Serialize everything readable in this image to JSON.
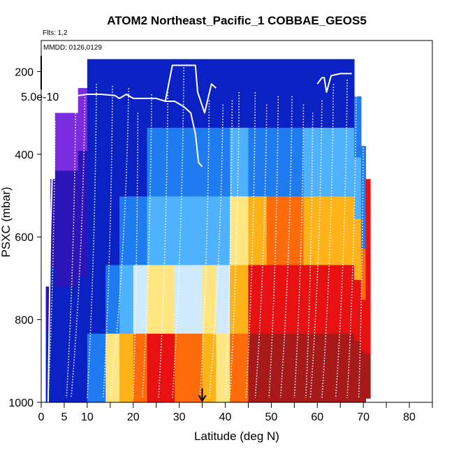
{
  "chart_data": {
    "type": "heatmap",
    "title": "ATOM2 Northeast_Pacific_1 COBBAE_GEOS5",
    "flights_label": "Flts: 1,2",
    "dates_label": "MMDD: 0126,0129",
    "colorbar_label": "5.0e-10",
    "xlabel": "Latitude (deg N)",
    "ylabel": "PSXC (mbar)",
    "xlim": [
      0,
      85
    ],
    "ylim": [
      1000,
      125
    ],
    "y_reversed": true,
    "x_ticks": [
      0,
      5,
      10,
      20,
      30,
      40,
      50,
      60,
      70,
      80
    ],
    "x_minor_ticks": [
      15,
      25,
      35,
      45,
      55,
      65,
      75,
      85
    ],
    "y_ticks": [
      200,
      400,
      600,
      800,
      1000
    ],
    "marker_latitude": 35,
    "color_levels": [
      "#7b2be0",
      "#2c14b8",
      "#0a22c4",
      "#1f7cf0",
      "#4fb2ff",
      "#cfeaff",
      "#ffe680",
      "#ffb319",
      "#ff6a0a",
      "#e81010",
      "#a81a1a"
    ],
    "columns": [
      {
        "lat_from": 1.0,
        "lat_to": 2.0,
        "p_top": 720,
        "p_bottom": 1000,
        "levels": [
          1,
          1,
          2,
          2,
          2
        ]
      },
      {
        "lat_from": 2.0,
        "lat_to": 3.0,
        "p_top": 460,
        "p_bottom": 1000,
        "levels": [
          1,
          1,
          2,
          2,
          2
        ]
      },
      {
        "lat_from": 3.0,
        "lat_to": 8.0,
        "p_top": 300,
        "p_bottom": 1000,
        "levels": [
          0,
          1,
          1,
          2,
          2
        ]
      },
      {
        "lat_from": 8.0,
        "lat_to": 10.0,
        "p_top": 240,
        "p_bottom": 1000,
        "levels": [
          0,
          1,
          1,
          2,
          2
        ]
      },
      {
        "lat_from": 10.0,
        "lat_to": 14.0,
        "p_top": 170,
        "p_bottom": 1000,
        "levels": [
          2,
          2,
          2,
          2,
          3
        ]
      },
      {
        "lat_from": 14.0,
        "lat_to": 17.0,
        "p_top": 170,
        "p_bottom": 1000,
        "levels": [
          2,
          2,
          2,
          3,
          6
        ]
      },
      {
        "lat_from": 17.0,
        "lat_to": 20.0,
        "p_top": 170,
        "p_bottom": 1000,
        "levels": [
          2,
          2,
          3,
          4,
          7
        ]
      },
      {
        "lat_from": 20.0,
        "lat_to": 23.0,
        "p_top": 170,
        "p_bottom": 1000,
        "levels": [
          2,
          2,
          3,
          5,
          8
        ]
      },
      {
        "lat_from": 23.0,
        "lat_to": 26.0,
        "p_top": 170,
        "p_bottom": 1000,
        "levels": [
          2,
          3,
          4,
          6,
          9
        ]
      },
      {
        "lat_from": 26.0,
        "lat_to": 29.0,
        "p_top": 170,
        "p_bottom": 1000,
        "levels": [
          2,
          3,
          4,
          6,
          9
        ]
      },
      {
        "lat_from": 29.0,
        "lat_to": 32.0,
        "p_top": 170,
        "p_bottom": 1000,
        "levels": [
          2,
          3,
          4,
          5,
          8
        ]
      },
      {
        "lat_from": 32.0,
        "lat_to": 35.0,
        "p_top": 170,
        "p_bottom": 1000,
        "levels": [
          2,
          3,
          4,
          5,
          8
        ]
      },
      {
        "lat_from": 35.0,
        "lat_to": 38.0,
        "p_top": 170,
        "p_bottom": 1000,
        "levels": [
          2,
          3,
          4,
          6,
          7
        ]
      },
      {
        "lat_from": 38.0,
        "lat_to": 41.0,
        "p_top": 170,
        "p_bottom": 1000,
        "levels": [
          2,
          3,
          4,
          5,
          6
        ]
      },
      {
        "lat_from": 41.0,
        "lat_to": 45.0,
        "p_top": 170,
        "p_bottom": 1000,
        "levels": [
          2,
          4,
          6,
          7,
          8
        ]
      },
      {
        "lat_from": 45.0,
        "lat_to": 49.0,
        "p_top": 170,
        "p_bottom": 1000,
        "levels": [
          2,
          3,
          7,
          9,
          10
        ]
      },
      {
        "lat_from": 49.0,
        "lat_to": 53.0,
        "p_top": 170,
        "p_bottom": 1000,
        "levels": [
          2,
          3,
          8,
          9,
          10
        ]
      },
      {
        "lat_from": 53.0,
        "lat_to": 57.0,
        "p_top": 170,
        "p_bottom": 1000,
        "levels": [
          2,
          3,
          8,
          9,
          10
        ]
      },
      {
        "lat_from": 57.0,
        "lat_to": 61.0,
        "p_top": 170,
        "p_bottom": 1000,
        "levels": [
          2,
          4,
          7,
          9,
          10
        ]
      },
      {
        "lat_from": 61.0,
        "lat_to": 65.0,
        "p_top": 170,
        "p_bottom": 1000,
        "levels": [
          2,
          4,
          7,
          9,
          10
        ]
      },
      {
        "lat_from": 65.0,
        "lat_to": 68.0,
        "p_top": 170,
        "p_bottom": 1000,
        "levels": [
          2,
          4,
          7,
          9,
          10
        ]
      },
      {
        "lat_from": 68.0,
        "lat_to": 69.5,
        "p_top": 260,
        "p_bottom": 1000,
        "levels": [
          3,
          4,
          7,
          9,
          10
        ]
      },
      {
        "lat_from": 69.5,
        "lat_to": 70.5,
        "p_top": 380,
        "p_bottom": 1000,
        "levels": [
          3,
          3,
          8,
          9,
          10
        ]
      },
      {
        "lat_from": 70.5,
        "lat_to": 71.5,
        "p_top": 460,
        "p_bottom": 990,
        "levels": [
          9,
          9,
          9,
          9,
          10
        ]
      }
    ],
    "flight_track": [
      {
        "lat": 1.5,
        "psxc": 1000
      },
      {
        "lat": 2.0,
        "psxc": 600
      },
      {
        "lat": 2.8,
        "psxc": 300
      },
      {
        "lat": 3.5,
        "psxc": 250
      },
      {
        "lat": 5.0,
        "psxc": 250
      },
      {
        "lat": 7.0,
        "psxc": 260
      },
      {
        "lat": 10.0,
        "psxc": 255
      },
      {
        "lat": 13.0,
        "psxc": 255
      },
      {
        "lat": 16.0,
        "psxc": 258
      },
      {
        "lat": 17.0,
        "psxc": 265
      },
      {
        "lat": 18.5,
        "psxc": 255
      },
      {
        "lat": 20.0,
        "psxc": 265
      },
      {
        "lat": 22.0,
        "psxc": 265
      },
      {
        "lat": 25.0,
        "psxc": 265
      },
      {
        "lat": 27.0,
        "psxc": 272
      },
      {
        "lat": 29.0,
        "psxc": 272
      },
      {
        "lat": 31.0,
        "psxc": 285
      },
      {
        "lat": 32.5,
        "psxc": 300
      },
      {
        "lat": 33.5,
        "psxc": 350
      },
      {
        "lat": 34.2,
        "psxc": 420
      },
      {
        "lat": 35.0,
        "psxc": 430
      }
    ],
    "sonde_lines": [
      {
        "lat_top": 3.0,
        "lat_bottom": 1.5,
        "p_top": 320
      },
      {
        "lat_top": 7.5,
        "lat_bottom": 5.5,
        "p_top": 260
      },
      {
        "lat_top": 9.5,
        "lat_bottom": 6.5,
        "p_top": 255
      },
      {
        "lat_top": 12.0,
        "lat_bottom": 10.0,
        "p_top": 230
      },
      {
        "lat_top": 15.5,
        "lat_bottom": 13.5,
        "p_top": 235
      },
      {
        "lat_top": 19.0,
        "lat_bottom": 15.0,
        "p_top": 240
      },
      {
        "lat_top": 21.0,
        "lat_bottom": 20.0,
        "p_top": 300
      },
      {
        "lat_top": 24.0,
        "lat_bottom": 22.0,
        "p_top": 255
      },
      {
        "lat_top": 27.5,
        "lat_bottom": 25.5,
        "p_top": 250
      },
      {
        "lat_top": 31.0,
        "lat_bottom": 28.5,
        "p_top": 190
      },
      {
        "lat_top": 36.5,
        "lat_bottom": 34.5,
        "p_top": 270
      },
      {
        "lat_top": 39.5,
        "lat_bottom": 36.5,
        "p_top": 280
      },
      {
        "lat_top": 41.5,
        "lat_bottom": 40.0,
        "p_top": 270
      },
      {
        "lat_top": 43.0,
        "lat_bottom": 41.0,
        "p_top": 250
      },
      {
        "lat_top": 46.5,
        "lat_bottom": 44.5,
        "p_top": 250
      },
      {
        "lat_top": 49.0,
        "lat_bottom": 46.5,
        "p_top": 280
      },
      {
        "lat_top": 51.5,
        "lat_bottom": 49.5,
        "p_top": 260
      },
      {
        "lat_top": 54.5,
        "lat_bottom": 52.0,
        "p_top": 260
      },
      {
        "lat_top": 57.0,
        "lat_bottom": 55.0,
        "p_top": 280
      },
      {
        "lat_top": 59.0,
        "lat_bottom": 57.5,
        "p_top": 300
      },
      {
        "lat_top": 61.0,
        "lat_bottom": 58.5,
        "p_top": 270
      },
      {
        "lat_top": 63.5,
        "lat_bottom": 61.0,
        "p_top": 230
      },
      {
        "lat_top": 66.5,
        "lat_bottom": 64.0,
        "p_top": 220
      },
      {
        "lat_top": 68.5,
        "lat_bottom": 66.5,
        "p_top": 205
      },
      {
        "lat_top": 70.0,
        "lat_bottom": 69.0,
        "p_top": 330
      }
    ],
    "top_track": [
      {
        "lat": 27.0,
        "psxc": 270
      },
      {
        "lat": 28.5,
        "psxc": 185
      },
      {
        "lat": 33.5,
        "psxc": 185
      },
      {
        "lat": 34.0,
        "psxc": 250
      },
      {
        "lat": 35.5,
        "psxc": 300
      },
      {
        "lat": 37.0,
        "psxc": 230
      },
      {
        "lat": 38.0,
        "psxc": 240
      }
    ],
    "right_track": [
      {
        "lat": 60.0,
        "psxc": 230
      },
      {
        "lat": 61.0,
        "psxc": 215
      },
      {
        "lat": 61.5,
        "psxc": 215
      },
      {
        "lat": 62.0,
        "psxc": 250
      },
      {
        "lat": 63.0,
        "psxc": 210
      },
      {
        "lat": 65.0,
        "psxc": 205
      },
      {
        "lat": 67.5,
        "psxc": 205
      }
    ]
  }
}
